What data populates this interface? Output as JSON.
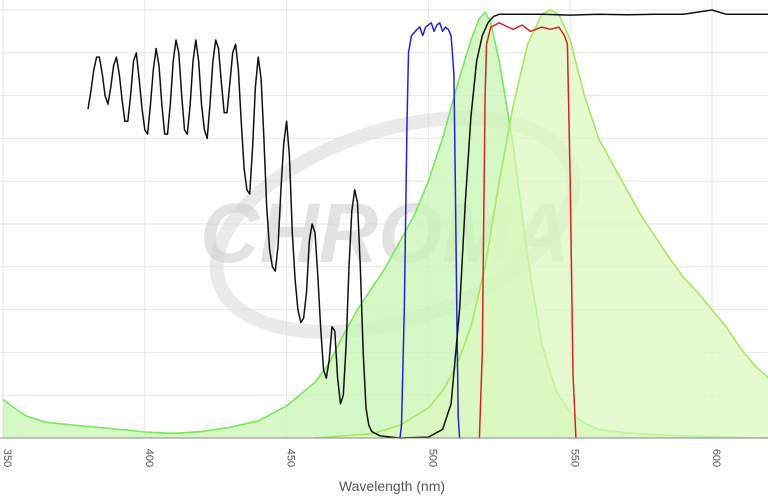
{
  "watermark": {
    "brand": "CHROMA",
    "mark": "®"
  },
  "chart_data": {
    "type": "line",
    "xlabel": "Wavelength (nm)",
    "ylabel": "",
    "xlim": [
      350,
      620
    ],
    "ylim": [
      0,
      100
    ],
    "x_ticks": [
      {
        "value": 350,
        "label": "350"
      },
      {
        "value": 400,
        "label": "400"
      },
      {
        "value": 450,
        "label": "450"
      },
      {
        "value": 500,
        "label": "500"
      },
      {
        "value": 550,
        "label": "550"
      },
      {
        "value": 600,
        "label": "600"
      }
    ],
    "grid": true,
    "series": [
      {
        "kind": "area",
        "color": "#78e85a",
        "fill": "#c8f5b4",
        "fill_opacity": 0.75,
        "points": [
          [
            350,
            9
          ],
          [
            354,
            7
          ],
          [
            358,
            5.2
          ],
          [
            365,
            3.7
          ],
          [
            375,
            3
          ],
          [
            390,
            2.1
          ],
          [
            400,
            1.4
          ],
          [
            410,
            1.1
          ],
          [
            420,
            1.5
          ],
          [
            430,
            2.5
          ],
          [
            440,
            4
          ],
          [
            450,
            7.5
          ],
          [
            460,
            13
          ],
          [
            465,
            17.5
          ],
          [
            470,
            24
          ],
          [
            475,
            30
          ],
          [
            480,
            35
          ],
          [
            485,
            40
          ],
          [
            490,
            46
          ],
          [
            495,
            52
          ],
          [
            500,
            60
          ],
          [
            505,
            70
          ],
          [
            510,
            82
          ],
          [
            515,
            93
          ],
          [
            518,
            98
          ],
          [
            520,
            99.5
          ],
          [
            522,
            97
          ],
          [
            525,
            88
          ],
          [
            530,
            68
          ],
          [
            535,
            42
          ],
          [
            540,
            22
          ],
          [
            545,
            11
          ],
          [
            550,
            6
          ],
          [
            555,
            3.5
          ],
          [
            560,
            2
          ],
          [
            570,
            1.2
          ],
          [
            580,
            0.8
          ],
          [
            590,
            0.5
          ],
          [
            605,
            0.2
          ],
          [
            620,
            0
          ]
        ]
      },
      {
        "kind": "area",
        "color": "#a8e860",
        "fill": "#dcf8bc",
        "fill_opacity": 0.7,
        "points": [
          [
            460,
            0
          ],
          [
            480,
            1
          ],
          [
            490,
            3
          ],
          [
            500,
            7
          ],
          [
            505,
            11
          ],
          [
            510,
            17
          ],
          [
            515,
            26
          ],
          [
            520,
            40
          ],
          [
            525,
            60
          ],
          [
            530,
            78
          ],
          [
            535,
            92
          ],
          [
            540,
            99
          ],
          [
            543,
            100
          ],
          [
            546,
            99
          ],
          [
            550,
            93
          ],
          [
            555,
            80
          ],
          [
            560,
            70
          ],
          [
            565,
            64
          ],
          [
            570,
            58
          ],
          [
            575,
            52
          ],
          [
            580,
            47
          ],
          [
            585,
            42
          ],
          [
            590,
            37.5
          ],
          [
            595,
            34
          ],
          [
            600,
            30
          ],
          [
            605,
            26
          ],
          [
            610,
            21
          ],
          [
            615,
            17
          ],
          [
            620,
            14
          ]
        ]
      },
      {
        "kind": "line",
        "color": "#2222dd",
        "points": [
          [
            490,
            0
          ],
          [
            490.5,
            3
          ],
          [
            491.5,
            30
          ],
          [
            492.5,
            75
          ],
          [
            493,
            90
          ],
          [
            494,
            94
          ],
          [
            496,
            95.5
          ],
          [
            497,
            96
          ],
          [
            498,
            94
          ],
          [
            499,
            96
          ],
          [
            501,
            97
          ],
          [
            502,
            95
          ],
          [
            503,
            96.5
          ],
          [
            504,
            97
          ],
          [
            505,
            95
          ],
          [
            506,
            96
          ],
          [
            507,
            95.5
          ],
          [
            508,
            94
          ],
          [
            509,
            85
          ],
          [
            509.5,
            60
          ],
          [
            510,
            30
          ],
          [
            510.5,
            5
          ],
          [
            511,
            0
          ]
        ]
      },
      {
        "kind": "line",
        "color": "#dd2222",
        "points": [
          [
            518,
            0
          ],
          [
            519,
            20
          ],
          [
            520,
            80
          ],
          [
            520.5,
            92
          ],
          [
            522,
            96
          ],
          [
            525,
            97
          ],
          [
            528,
            96
          ],
          [
            530,
            95.5
          ],
          [
            533,
            96.5
          ],
          [
            536,
            95
          ],
          [
            540,
            96
          ],
          [
            543,
            95.5
          ],
          [
            546,
            96
          ],
          [
            548,
            94
          ],
          [
            549,
            92
          ],
          [
            550,
            60
          ],
          [
            551,
            15
          ],
          [
            552,
            0
          ]
        ]
      },
      {
        "kind": "line",
        "color": "#111111",
        "points": [
          [
            380,
            77
          ],
          [
            381,
            81
          ],
          [
            382,
            86
          ],
          [
            383,
            89
          ],
          [
            384,
            89
          ],
          [
            385,
            85
          ],
          [
            386,
            80
          ],
          [
            387,
            78
          ],
          [
            388,
            82
          ],
          [
            389,
            87
          ],
          [
            390,
            89
          ],
          [
            391,
            85
          ],
          [
            392,
            79
          ],
          [
            393,
            74
          ],
          [
            394,
            74
          ],
          [
            395,
            80
          ],
          [
            396,
            88
          ],
          [
            397,
            90
          ],
          [
            398,
            84
          ],
          [
            399,
            77
          ],
          [
            400,
            72
          ],
          [
            401,
            71
          ],
          [
            402,
            78
          ],
          [
            403,
            86
          ],
          [
            404,
            91
          ],
          [
            405,
            87
          ],
          [
            406,
            78
          ],
          [
            407,
            71
          ],
          [
            408,
            71
          ],
          [
            409,
            78
          ],
          [
            410,
            88
          ],
          [
            411,
            93
          ],
          [
            412,
            90
          ],
          [
            413,
            80
          ],
          [
            414,
            72
          ],
          [
            415,
            71
          ],
          [
            416,
            78
          ],
          [
            417,
            88
          ],
          [
            418,
            93
          ],
          [
            419,
            88
          ],
          [
            420,
            78
          ],
          [
            421,
            72
          ],
          [
            422,
            70
          ],
          [
            423,
            78
          ],
          [
            424,
            88
          ],
          [
            425,
            93
          ],
          [
            426,
            91
          ],
          [
            427,
            83
          ],
          [
            428,
            76
          ],
          [
            429,
            76
          ],
          [
            430,
            83
          ],
          [
            431,
            90
          ],
          [
            432,
            92
          ],
          [
            433,
            86
          ],
          [
            434,
            74
          ],
          [
            435,
            63
          ],
          [
            436,
            58
          ],
          [
            437,
            57
          ],
          [
            438,
            68
          ],
          [
            439,
            82
          ],
          [
            440,
            89
          ],
          [
            441,
            84
          ],
          [
            442,
            70
          ],
          [
            443,
            54
          ],
          [
            444,
            44
          ],
          [
            445,
            40
          ],
          [
            446,
            39
          ],
          [
            447,
            45
          ],
          [
            448,
            58
          ],
          [
            449,
            69
          ],
          [
            450,
            74
          ],
          [
            451,
            66
          ],
          [
            452,
            48
          ],
          [
            453,
            37
          ],
          [
            454,
            30
          ],
          [
            455,
            27
          ],
          [
            456,
            28
          ],
          [
            457,
            34
          ],
          [
            458,
            46
          ],
          [
            459,
            50
          ],
          [
            460,
            48
          ],
          [
            461,
            38
          ],
          [
            462,
            26
          ],
          [
            463,
            16
          ],
          [
            464,
            14
          ],
          [
            465,
            18
          ],
          [
            466,
            26
          ],
          [
            467,
            25
          ],
          [
            468,
            14
          ],
          [
            469,
            8
          ],
          [
            470,
            10
          ],
          [
            471,
            22
          ],
          [
            472,
            40
          ],
          [
            473,
            53
          ],
          [
            474,
            58
          ],
          [
            475,
            55
          ],
          [
            476,
            40
          ],
          [
            477,
            20
          ],
          [
            478,
            7
          ],
          [
            479,
            3
          ],
          [
            480,
            1.5
          ],
          [
            483,
            0.5
          ],
          [
            490,
            0
          ],
          [
            500,
            0.2
          ],
          [
            505,
            2
          ],
          [
            508,
            8
          ],
          [
            511,
            30
          ],
          [
            513,
            55
          ],
          [
            515,
            75
          ],
          [
            517,
            88
          ],
          [
            519,
            94
          ],
          [
            521,
            97
          ],
          [
            523,
            98.5
          ],
          [
            525,
            99
          ],
          [
            530,
            99
          ],
          [
            540,
            99
          ],
          [
            550,
            98.8
          ],
          [
            560,
            99
          ],
          [
            570,
            98.9
          ],
          [
            580,
            99
          ],
          [
            590,
            99
          ],
          [
            595,
            99.5
          ],
          [
            600,
            100
          ],
          [
            605,
            99
          ],
          [
            610,
            99
          ],
          [
            615,
            99
          ],
          [
            620,
            99
          ]
        ]
      }
    ]
  }
}
